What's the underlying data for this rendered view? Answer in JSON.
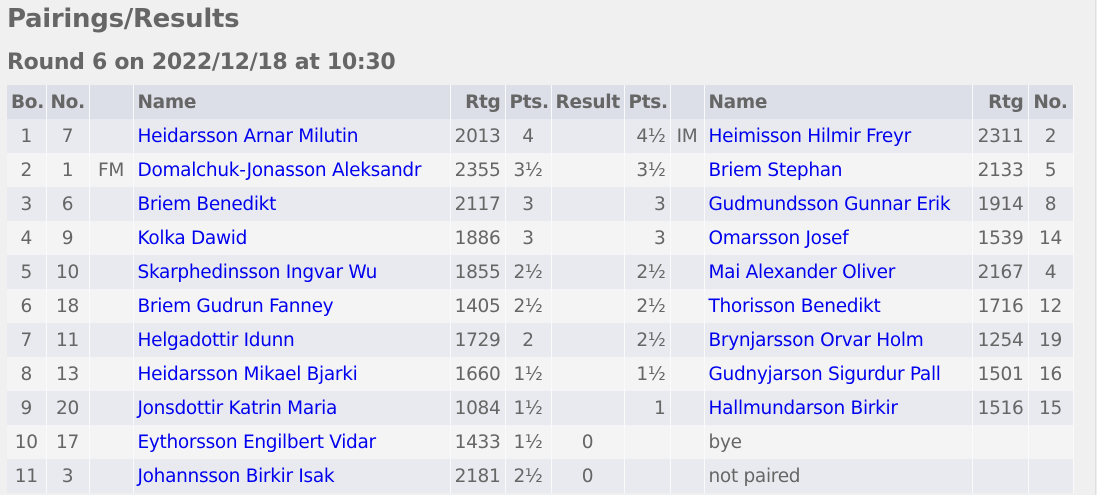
{
  "title": "Pairings/Results",
  "round_heading": "Round 6 on 2022/12/18 at 10:30",
  "colors": {
    "link": "#0000ee",
    "header_bg": "#dcdfe7",
    "text": "#666666"
  },
  "headers": [
    "Bo.",
    "No.",
    "",
    "Name",
    "Rtg",
    "Pts.",
    "Result",
    "Pts.",
    "",
    "Name",
    "Rtg",
    "No."
  ],
  "rows": [
    {
      "bo": "1",
      "no": "7",
      "title": "",
      "name": "Heidarsson Arnar Milutin",
      "rtg": "2013",
      "pts": "4",
      "result": "",
      "pts2": "4½",
      "title2": "IM",
      "name2": "Heimisson Hilmir Freyr",
      "rtg2": "2311",
      "no2": "2"
    },
    {
      "bo": "2",
      "no": "1",
      "title": "FM",
      "name": "Domalchuk-Jonasson Aleksandr",
      "rtg": "2355",
      "pts": "3½",
      "result": "",
      "pts2": "3½",
      "title2": "",
      "name2": "Briem Stephan",
      "rtg2": "2133",
      "no2": "5"
    },
    {
      "bo": "3",
      "no": "6",
      "title": "",
      "name": "Briem Benedikt",
      "rtg": "2117",
      "pts": "3",
      "result": "",
      "pts2": "3",
      "title2": "",
      "name2": "Gudmundsson Gunnar Erik",
      "rtg2": "1914",
      "no2": "8"
    },
    {
      "bo": "4",
      "no": "9",
      "title": "",
      "name": "Kolka Dawid",
      "rtg": "1886",
      "pts": "3",
      "result": "",
      "pts2": "3",
      "title2": "",
      "name2": "Omarsson Josef",
      "rtg2": "1539",
      "no2": "14"
    },
    {
      "bo": "5",
      "no": "10",
      "title": "",
      "name": "Skarphedinsson Ingvar Wu",
      "rtg": "1855",
      "pts": "2½",
      "result": "",
      "pts2": "2½",
      "title2": "",
      "name2": "Mai Alexander Oliver",
      "rtg2": "2167",
      "no2": "4"
    },
    {
      "bo": "6",
      "no": "18",
      "title": "",
      "name": "Briem Gudrun Fanney",
      "rtg": "1405",
      "pts": "2½",
      "result": "",
      "pts2": "2½",
      "title2": "",
      "name2": "Thorisson Benedikt",
      "rtg2": "1716",
      "no2": "12"
    },
    {
      "bo": "7",
      "no": "11",
      "title": "",
      "name": "Helgadottir Idunn",
      "rtg": "1729",
      "pts": "2",
      "result": "",
      "pts2": "2½",
      "title2": "",
      "name2": "Brynjarsson Orvar Holm",
      "rtg2": "1254",
      "no2": "19"
    },
    {
      "bo": "8",
      "no": "13",
      "title": "",
      "name": "Heidarsson Mikael Bjarki",
      "rtg": "1660",
      "pts": "1½",
      "result": "",
      "pts2": "1½",
      "title2": "",
      "name2": "Gudnyjarson Sigurdur Pall",
      "rtg2": "1501",
      "no2": "16"
    },
    {
      "bo": "9",
      "no": "20",
      "title": "",
      "name": "Jonsdottir Katrin Maria",
      "rtg": "1084",
      "pts": "1½",
      "result": "",
      "pts2": "1",
      "title2": "",
      "name2": "Hallmundarson Birkir",
      "rtg2": "1516",
      "no2": "15"
    },
    {
      "bo": "10",
      "no": "17",
      "title": "",
      "name": "Eythorsson Engilbert Vidar",
      "rtg": "1433",
      "pts": "1½",
      "result": "0",
      "pts2": "",
      "title2": "",
      "name2": "bye",
      "name2_plain": true,
      "rtg2": "",
      "no2": ""
    },
    {
      "bo": "11",
      "no": "3",
      "title": "",
      "name": "Johannsson Birkir Isak",
      "rtg": "2181",
      "pts": "2½",
      "result": "0",
      "pts2": "",
      "title2": "",
      "name2": "not paired",
      "name2_plain": true,
      "rtg2": "",
      "no2": ""
    }
  ]
}
